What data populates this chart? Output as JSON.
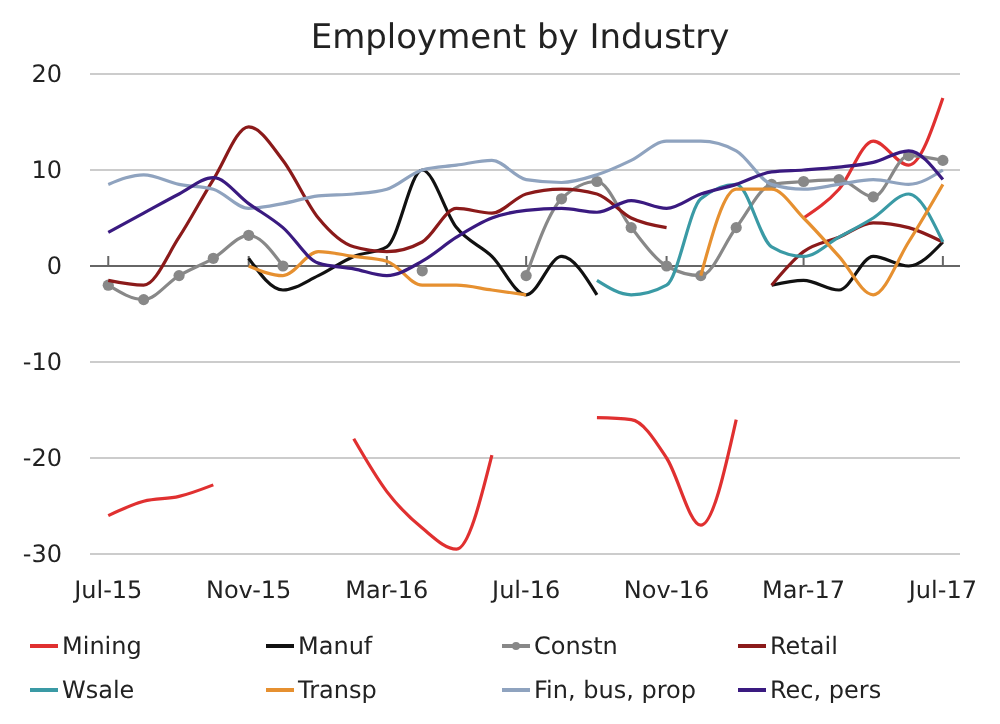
{
  "chart_data": {
    "type": "line",
    "title": "Employment by Industry",
    "x": [
      "2015-07",
      "2015-08",
      "2015-09",
      "2015-10",
      "2015-11",
      "2015-12",
      "2016-01",
      "2016-02",
      "2016-03",
      "2016-04",
      "2016-05",
      "2016-06",
      "2016-07",
      "2016-08",
      "2016-09",
      "2016-10",
      "2016-11",
      "2016-12",
      "2017-01",
      "2017-02",
      "2017-03",
      "2017-04",
      "2017-05",
      "2017-06",
      "2017-07"
    ],
    "xlim": [
      "2015-06-15",
      "2017-07-16"
    ],
    "xticks": [
      {
        "value": "2015-07",
        "label": "Jul-15"
      },
      {
        "value": "2015-11",
        "label": "Nov-15"
      },
      {
        "value": "2016-03",
        "label": "Mar-16"
      },
      {
        "value": "2016-07",
        "label": "Jul-16"
      },
      {
        "value": "2016-11",
        "label": "Nov-16"
      },
      {
        "value": "2017-03",
        "label": "Mar-17"
      },
      {
        "value": "2017-07",
        "label": "Jul-17"
      }
    ],
    "ylim": [
      -30,
      20
    ],
    "yticks": [
      -30,
      -20,
      -10,
      0,
      10,
      20
    ],
    "grid": "y",
    "legend": "bottom",
    "marker": "none",
    "line_style": "solid",
    "series": [
      {
        "name": "Mining",
        "color": "#e03030",
        "values": [
          -26,
          -24.5,
          -24,
          -22.8,
          null,
          null,
          null,
          -18,
          -23.5,
          -27.3,
          -29.5,
          -19.7,
          null,
          null,
          -15.8,
          -16,
          -20,
          -27,
          -16,
          null,
          5,
          8,
          13,
          10.5,
          17.5
        ]
      },
      {
        "name": "Manuf",
        "color": "#111111",
        "values": [
          null,
          null,
          null,
          null,
          0.8,
          -2.5,
          -1,
          1,
          2,
          10,
          4,
          1,
          -3,
          1,
          -3,
          null,
          null,
          null,
          null,
          -2,
          -1.5,
          -2.5,
          1,
          0,
          2.5
        ]
      },
      {
        "name": "Constn",
        "color": "#888888",
        "marker": "circle",
        "values": [
          -2,
          -3.5,
          -1,
          0.8,
          3.2,
          0,
          null,
          null,
          null,
          -0.5,
          null,
          null,
          -1,
          7,
          8.8,
          4,
          0,
          -1,
          4,
          8.5,
          8.8,
          9,
          7.2,
          11.5,
          11
        ]
      },
      {
        "name": "Retail",
        "color": "#8b1a1a",
        "values": [
          -1.5,
          -2,
          3,
          9,
          14.5,
          11,
          5,
          2,
          1.5,
          2.5,
          6,
          5.5,
          7.5,
          8,
          7.5,
          5,
          4,
          null,
          null,
          -2,
          1.5,
          3,
          4.5,
          4,
          2.5
        ]
      },
      {
        "name": "Wsale",
        "color": "#3a9aa5",
        "values": [
          null,
          null,
          null,
          null,
          null,
          null,
          null,
          null,
          null,
          null,
          null,
          null,
          null,
          null,
          -1.5,
          -3,
          -2,
          7,
          8.5,
          2,
          1,
          3,
          5,
          7.5,
          2.5
        ]
      },
      {
        "name": "Transp",
        "color": "#e69030",
        "values": [
          null,
          null,
          null,
          null,
          0,
          -1,
          1.5,
          1,
          0.5,
          -2,
          -2,
          -2.5,
          -3,
          null,
          null,
          null,
          null,
          -1,
          8,
          8,
          5,
          1,
          -3,
          2.5,
          8.5
        ]
      },
      {
        "name": "Fin, bus, prop",
        "color": "#8fa3bf",
        "values": [
          8.5,
          9.5,
          8.5,
          8,
          6,
          6.5,
          7.3,
          7.5,
          8,
          10,
          10.5,
          11,
          9,
          8.7,
          9.5,
          11,
          13,
          13,
          12,
          8.5,
          8,
          8.5,
          9,
          8.5,
          10
        ]
      },
      {
        "name": "Rec, pers",
        "color": "#3a1a80",
        "values": [
          3.5,
          5.5,
          7.5,
          9.2,
          6.5,
          4,
          0.3,
          -0.3,
          -1,
          0.5,
          3,
          5,
          5.8,
          6,
          5.6,
          6.8,
          6,
          7.5,
          8.5,
          9.8,
          10,
          10.3,
          10.8,
          12,
          9
        ]
      }
    ]
  }
}
